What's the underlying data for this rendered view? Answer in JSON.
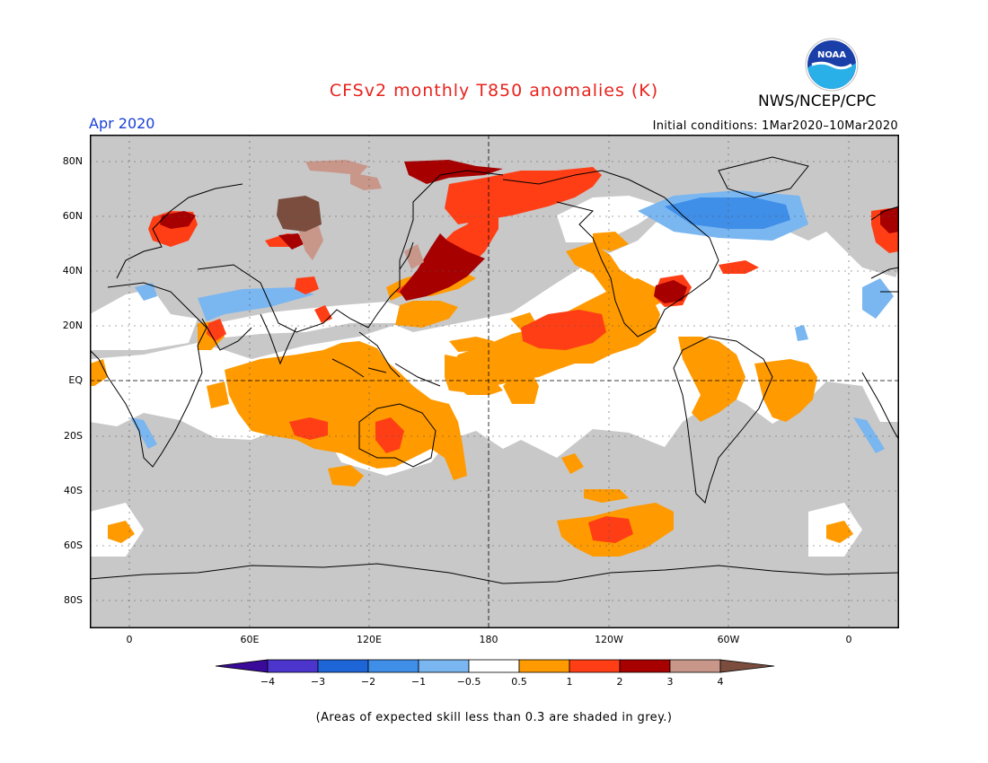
{
  "title": "CFSv2 monthly T850 anomalies (K)",
  "agency": "NWS/NCEP/CPC",
  "logo_text": "NOAA",
  "month": "Apr 2020",
  "initial_conditions": "Initial conditions: 1Mar2020–10Mar2020",
  "lat_ticks": [
    "80N",
    "60N",
    "40N",
    "20N",
    "EQ",
    "20S",
    "40S",
    "60S",
    "80S"
  ],
  "lon_ticks": [
    "0",
    "60E",
    "120E",
    "180",
    "120W",
    "60W",
    "0"
  ],
  "legend": {
    "labels": [
      "−4",
      "−3",
      "−2",
      "−1",
      "−0.5",
      "0.5",
      "1",
      "2",
      "3",
      "4"
    ],
    "colors": [
      "#3a0a9a",
      "#4b35cc",
      "#1e66d8",
      "#3f8ee8",
      "#7ab6f0",
      "#ffffff",
      "#ff9a00",
      "#ff3e16",
      "#a60000",
      "#c9968a",
      "#7a4d3e"
    ]
  },
  "colors": {
    "grey": "#c8c8c8",
    "orange": "#ff9a00",
    "red": "#ff3e16",
    "darkred": "#a60000",
    "pink": "#c9968a",
    "brown": "#7a4d3e",
    "lightblue": "#7ab6f0",
    "blue": "#3f8ee8"
  },
  "footnote": "(Areas of expected skill less than 0.3 are shaded in grey.)"
}
